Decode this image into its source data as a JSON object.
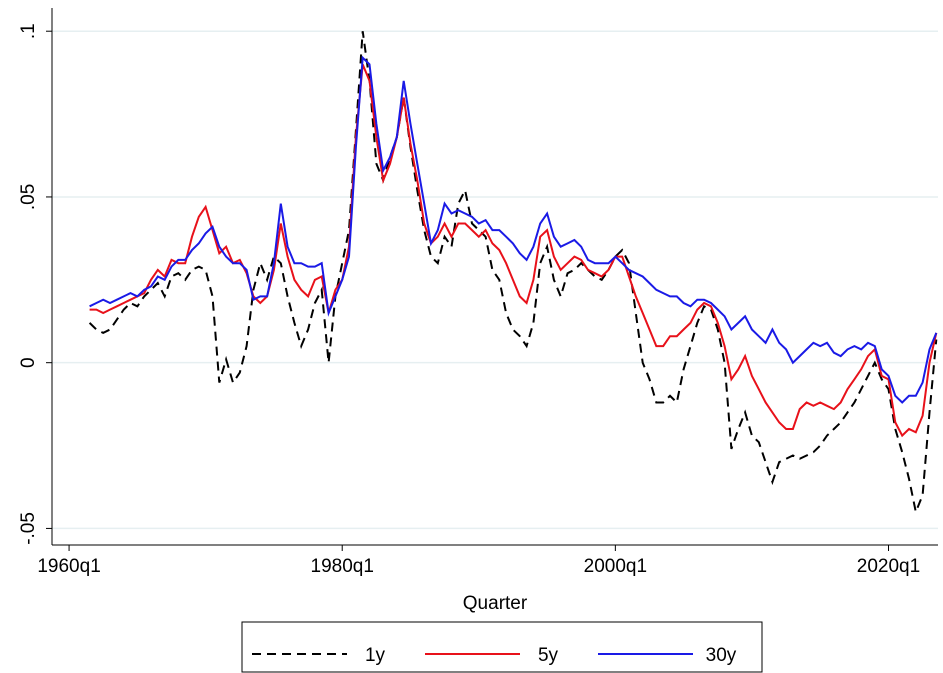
{
  "chart_data": {
    "type": "line",
    "x_label": "Quarter",
    "x": [
      6,
      8,
      10,
      12,
      14,
      16,
      18,
      20,
      22,
      24,
      26,
      28,
      30,
      32,
      34,
      36,
      38,
      40,
      42,
      44,
      46,
      48,
      50,
      52,
      54,
      56,
      58,
      60,
      62,
      64,
      66,
      68,
      70,
      72,
      74,
      76,
      78,
      80,
      82,
      84,
      86,
      88,
      90,
      92,
      94,
      96,
      98,
      100,
      102,
      104,
      106,
      108,
      110,
      112,
      114,
      116,
      118,
      120,
      122,
      124,
      126,
      128,
      130,
      132,
      134,
      136,
      138,
      140,
      142,
      144,
      146,
      148,
      150,
      152,
      154,
      156,
      158,
      160,
      162,
      164,
      166,
      168,
      170,
      172,
      174,
      176,
      178,
      180,
      182,
      184,
      186,
      188,
      190,
      192,
      194,
      196,
      198,
      200,
      202,
      204,
      206,
      208,
      210,
      212,
      214,
      216,
      218,
      220,
      222,
      224,
      226,
      228,
      230,
      232,
      234,
      236,
      238,
      240,
      242,
      244,
      246,
      248,
      250,
      252,
      254
    ],
    "xlim": [
      -5,
      254.5
    ],
    "xticks": [
      {
        "value": 0,
        "label": "1960q1"
      },
      {
        "value": 80,
        "label": "1980q1"
      },
      {
        "value": 160,
        "label": "2000q1"
      },
      {
        "value": 240,
        "label": "2020q1"
      }
    ],
    "ylim": [
      -0.055,
      0.107
    ],
    "yticks": [
      {
        "value": -0.05,
        "label": "-.05"
      },
      0,
      {
        "value": 0.05,
        "label": ".05"
      },
      {
        "value": 0.1,
        "label": ".1"
      }
    ],
    "grid": true,
    "legend": "bottom",
    "series": [
      {
        "name": "1y",
        "color": "#000000",
        "dash": true,
        "values": [
          0.012,
          0.01,
          0.009,
          0.01,
          0.013,
          0.016,
          0.018,
          0.017,
          0.02,
          0.022,
          0.024,
          0.02,
          0.026,
          0.027,
          0.025,
          0.028,
          0.029,
          0.028,
          0.02,
          -0.006,
          0.001,
          -0.006,
          -0.003,
          0.005,
          0.022,
          0.03,
          0.025,
          0.032,
          0.03,
          0.02,
          0.012,
          0.005,
          0.01,
          0.018,
          0.022,
          0.0,
          0.02,
          0.03,
          0.04,
          0.07,
          0.1,
          0.085,
          0.06,
          0.055,
          0.062,
          0.068,
          0.08,
          0.065,
          0.052,
          0.04,
          0.032,
          0.03,
          0.038,
          0.035,
          0.048,
          0.052,
          0.042,
          0.04,
          0.038,
          0.028,
          0.025,
          0.015,
          0.01,
          0.008,
          0.005,
          0.012,
          0.03,
          0.035,
          0.025,
          0.02,
          0.027,
          0.028,
          0.03,
          0.028,
          0.026,
          0.025,
          0.028,
          0.032,
          0.034,
          0.03,
          0.015,
          0.0,
          -0.005,
          -0.012,
          -0.012,
          -0.01,
          -0.012,
          -0.002,
          0.005,
          0.012,
          0.017,
          0.016,
          0.01,
          0.0,
          -0.026,
          -0.02,
          -0.015,
          -0.022,
          -0.024,
          -0.03,
          -0.036,
          -0.03,
          -0.029,
          -0.028,
          -0.029,
          -0.028,
          -0.027,
          -0.025,
          -0.022,
          -0.02,
          -0.018,
          -0.015,
          -0.012,
          -0.008,
          -0.004,
          0.0,
          -0.005,
          -0.008,
          -0.02,
          -0.027,
          -0.035,
          -0.045,
          -0.04,
          -0.015,
          0.007
        ]
      },
      {
        "name": "5y",
        "color": "#e8111a",
        "values": [
          0.016,
          0.016,
          0.015,
          0.016,
          0.017,
          0.018,
          0.019,
          0.02,
          0.021,
          0.025,
          0.028,
          0.026,
          0.031,
          0.03,
          0.03,
          0.038,
          0.044,
          0.047,
          0.04,
          0.033,
          0.035,
          0.03,
          0.031,
          0.027,
          0.02,
          0.018,
          0.02,
          0.028,
          0.042,
          0.032,
          0.025,
          0.022,
          0.02,
          0.025,
          0.026,
          0.015,
          0.022,
          0.025,
          0.035,
          0.068,
          0.09,
          0.085,
          0.068,
          0.055,
          0.06,
          0.068,
          0.08,
          0.066,
          0.055,
          0.042,
          0.036,
          0.038,
          0.042,
          0.038,
          0.042,
          0.042,
          0.04,
          0.038,
          0.04,
          0.036,
          0.034,
          0.03,
          0.025,
          0.02,
          0.018,
          0.025,
          0.038,
          0.04,
          0.032,
          0.028,
          0.03,
          0.032,
          0.031,
          0.028,
          0.027,
          0.026,
          0.028,
          0.032,
          0.032,
          0.026,
          0.02,
          0.015,
          0.01,
          0.005,
          0.005,
          0.008,
          0.008,
          0.01,
          0.012,
          0.016,
          0.018,
          0.017,
          0.012,
          0.005,
          -0.005,
          -0.002,
          0.002,
          -0.004,
          -0.008,
          -0.012,
          -0.015,
          -0.018,
          -0.02,
          -0.02,
          -0.014,
          -0.012,
          -0.013,
          -0.012,
          -0.013,
          -0.014,
          -0.012,
          -0.008,
          -0.005,
          -0.002,
          0.002,
          0.004,
          -0.004,
          -0.005,
          -0.018,
          -0.022,
          -0.02,
          -0.021,
          -0.016,
          0.0,
          0.009
        ]
      },
      {
        "name": "30y",
        "color": "#1a1ae6",
        "values": [
          0.017,
          0.018,
          0.019,
          0.018,
          0.019,
          0.02,
          0.021,
          0.02,
          0.022,
          0.023,
          0.026,
          0.025,
          0.029,
          0.031,
          0.031,
          0.034,
          0.036,
          0.039,
          0.041,
          0.035,
          0.032,
          0.03,
          0.03,
          0.028,
          0.019,
          0.02,
          0.02,
          0.03,
          0.048,
          0.035,
          0.03,
          0.03,
          0.029,
          0.029,
          0.03,
          0.015,
          0.02,
          0.025,
          0.032,
          0.065,
          0.092,
          0.09,
          0.072,
          0.058,
          0.062,
          0.068,
          0.085,
          0.072,
          0.06,
          0.048,
          0.036,
          0.04,
          0.048,
          0.045,
          0.046,
          0.045,
          0.044,
          0.042,
          0.043,
          0.04,
          0.04,
          0.038,
          0.036,
          0.033,
          0.031,
          0.035,
          0.042,
          0.045,
          0.038,
          0.035,
          0.036,
          0.037,
          0.035,
          0.031,
          0.03,
          0.03,
          0.03,
          0.032,
          0.03,
          0.028,
          0.027,
          0.026,
          0.024,
          0.022,
          0.021,
          0.02,
          0.02,
          0.018,
          0.017,
          0.019,
          0.019,
          0.018,
          0.016,
          0.014,
          0.01,
          0.012,
          0.014,
          0.01,
          0.008,
          0.006,
          0.01,
          0.006,
          0.004,
          0.0,
          0.002,
          0.004,
          0.006,
          0.005,
          0.006,
          0.003,
          0.002,
          0.004,
          0.005,
          0.004,
          0.006,
          0.005,
          -0.002,
          -0.004,
          -0.01,
          -0.012,
          -0.01,
          -0.01,
          -0.006,
          0.004,
          0.009
        ]
      }
    ]
  }
}
